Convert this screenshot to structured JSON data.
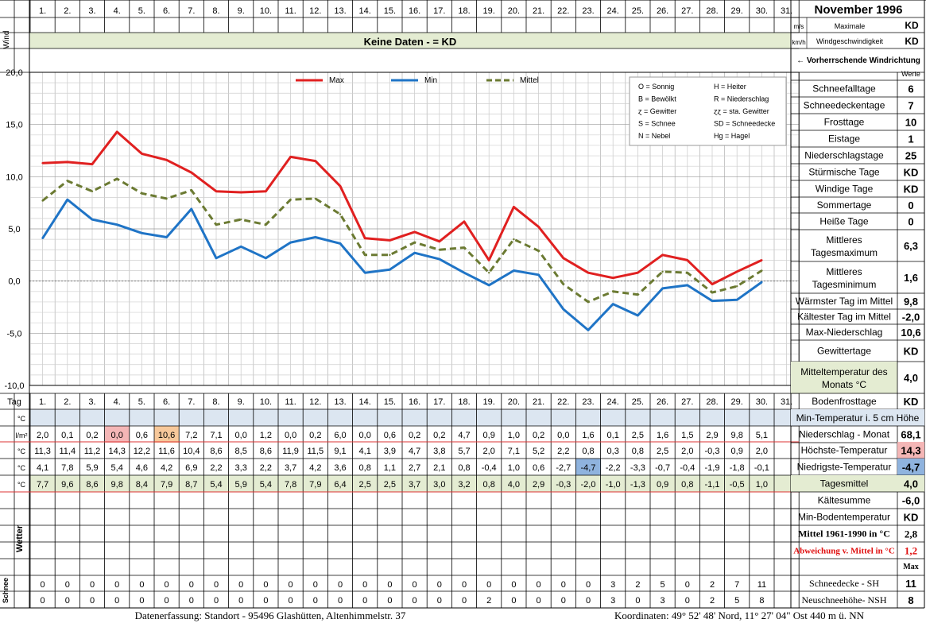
{
  "header": {
    "month_title": "November 1996",
    "wind_label": "Wind",
    "unit_ms": "m/s",
    "unit_kmh": "km/h",
    "max_wind_label_1": "Maximale",
    "max_wind_label_2": "Windgeschwindigkeit",
    "max_wind_ms": "KD",
    "max_wind_kmh": "KD",
    "no_data_banner": "Keine Daten -  = KD",
    "wind_direction_label": "← Vorherrschende Windrichtung",
    "werte_label": "Werte"
  },
  "days": [
    "1.",
    "2.",
    "3.",
    "4.",
    "5.",
    "6.",
    "7.",
    "8.",
    "9.",
    "10.",
    "11.",
    "12.",
    "13.",
    "14.",
    "15.",
    "16.",
    "17.",
    "18.",
    "19.",
    "20.",
    "21.",
    "22.",
    "23.",
    "24.",
    "25.",
    "26.",
    "27.",
    "28.",
    "29.",
    "30.",
    "31."
  ],
  "legend_box": [
    {
      "left": "O = Sonnig",
      "right": "H = Heiter"
    },
    {
      "left": "B = Bewölkt",
      "right": "R = Niederschlag"
    },
    {
      "left": "ɀ = Gewitter",
      "right": "ɀɀ = sta. Gewitter"
    },
    {
      "left": "S = Schnee",
      "right": "SD = Schneedecke"
    },
    {
      "left": "N = Nebel",
      "right": "Hg = Hagel"
    }
  ],
  "chart_data": {
    "type": "line",
    "x": [
      1,
      2,
      3,
      4,
      5,
      6,
      7,
      8,
      9,
      10,
      11,
      12,
      13,
      14,
      15,
      16,
      17,
      18,
      19,
      20,
      21,
      22,
      23,
      24,
      25,
      26,
      27,
      28,
      29,
      30
    ],
    "xlabel": "Tag",
    "ylim": [
      -10,
      20
    ],
    "y_ticks": [
      "20,0",
      "15,0",
      "10,0",
      "5,0",
      "0,0",
      "-5,0",
      "-10,0"
    ],
    "grid": true,
    "legend_position": "top",
    "series": [
      {
        "name": "Max",
        "color": "#e02020",
        "values": [
          11.3,
          11.4,
          11.2,
          14.3,
          12.2,
          11.6,
          10.4,
          8.6,
          8.5,
          8.6,
          11.9,
          11.5,
          9.1,
          4.1,
          3.9,
          4.7,
          3.8,
          5.7,
          2.0,
          7.1,
          5.2,
          2.2,
          0.8,
          0.3,
          0.8,
          2.5,
          2.0,
          -0.3,
          0.9,
          2.0
        ]
      },
      {
        "name": "Min",
        "color": "#1f74c6",
        "values": [
          4.1,
          7.8,
          5.9,
          5.4,
          4.6,
          4.2,
          6.9,
          2.2,
          3.3,
          2.2,
          3.7,
          4.2,
          3.6,
          0.8,
          1.1,
          2.7,
          2.1,
          0.8,
          -0.4,
          1.0,
          0.6,
          -2.7,
          -4.7,
          -2.2,
          -3.3,
          -0.7,
          -0.4,
          -1.9,
          -1.8,
          -0.1
        ]
      },
      {
        "name": "Mittel",
        "color": "#6b7a32",
        "values": [
          7.7,
          9.6,
          8.6,
          9.8,
          8.4,
          7.9,
          8.7,
          5.4,
          5.9,
          5.4,
          7.8,
          7.9,
          6.4,
          2.5,
          2.5,
          3.7,
          3.0,
          3.2,
          0.8,
          4.0,
          2.9,
          -0.3,
          -2.0,
          -1.0,
          -1.3,
          0.9,
          0.8,
          -1.1,
          -0.5,
          1.0
        ]
      }
    ]
  },
  "table": {
    "tag_label": "Tag",
    "row_units": [
      "°C",
      "l/m²",
      "°C",
      "°C",
      "°C"
    ],
    "niederschlag": [
      "2,0",
      "0,1",
      "0,2",
      "0,0",
      "0,6",
      "10,6",
      "7,2",
      "7,1",
      "0,0",
      "1,2",
      "0,0",
      "0,2",
      "6,0",
      "0,0",
      "0,6",
      "0,2",
      "0,2",
      "4,7",
      "0,9",
      "1,0",
      "0,2",
      "0,0",
      "1,6",
      "0,1",
      "2,5",
      "1,6",
      "1,5",
      "2,9",
      "9,8",
      "5,1",
      ""
    ],
    "max": [
      "11,3",
      "11,4",
      "11,2",
      "14,3",
      "12,2",
      "11,6",
      "10,4",
      "8,6",
      "8,5",
      "8,6",
      "11,9",
      "11,5",
      "9,1",
      "4,1",
      "3,9",
      "4,7",
      "3,8",
      "5,7",
      "2,0",
      "7,1",
      "5,2",
      "2,2",
      "0,8",
      "0,3",
      "0,8",
      "2,5",
      "2,0",
      "-0,3",
      "0,9",
      "2,0",
      ""
    ],
    "min": [
      "4,1",
      "7,8",
      "5,9",
      "5,4",
      "4,6",
      "4,2",
      "6,9",
      "2,2",
      "3,3",
      "2,2",
      "3,7",
      "4,2",
      "3,6",
      "0,8",
      "1,1",
      "2,7",
      "2,1",
      "0,8",
      "-0,4",
      "1,0",
      "0,6",
      "-2,7",
      "-4,7",
      "-2,2",
      "-3,3",
      "-0,7",
      "-0,4",
      "-1,9",
      "-1,8",
      "-0,1",
      ""
    ],
    "mittel": [
      "7,7",
      "9,6",
      "8,6",
      "9,8",
      "8,4",
      "7,9",
      "8,7",
      "5,4",
      "5,9",
      "5,4",
      "7,8",
      "7,9",
      "6,4",
      "2,5",
      "2,5",
      "3,7",
      "3,0",
      "3,2",
      "0,8",
      "4,0",
      "2,9",
      "-0,3",
      "-2,0",
      "-1,0",
      "-1,3",
      "0,9",
      "0,8",
      "-1,1",
      "-0,5",
      "1,0",
      ""
    ],
    "wetter_label": "Wetter",
    "schnee_label": "Schnee",
    "snow_sh": [
      "0",
      "0",
      "0",
      "0",
      "0",
      "0",
      "0",
      "0",
      "0",
      "0",
      "0",
      "0",
      "0",
      "0",
      "0",
      "0",
      "0",
      "0",
      "0",
      "0",
      "0",
      "0",
      "0",
      "3",
      "2",
      "5",
      "0",
      "2",
      "7",
      "11",
      ""
    ],
    "snow_nsh": [
      "0",
      "0",
      "0",
      "0",
      "0",
      "0",
      "0",
      "0",
      "0",
      "0",
      "0",
      "0",
      "0",
      "0",
      "0",
      "0",
      "0",
      "0",
      "2",
      "0",
      "0",
      "0",
      "0",
      "3",
      "0",
      "3",
      "0",
      "2",
      "5",
      "8",
      ""
    ]
  },
  "stats": [
    {
      "label": "Schneefalltage",
      "value": "6"
    },
    {
      "label": "Schneedeckentage",
      "value": "7"
    },
    {
      "label": "Frosttage",
      "value": "10"
    },
    {
      "label": "Eistage",
      "value": "1"
    },
    {
      "label": "Niederschlagstage",
      "value": "25"
    },
    {
      "label": "Stürmische Tage",
      "value": "KD"
    },
    {
      "label": "Windige Tage",
      "value": "KD"
    },
    {
      "label": "Sommertage",
      "value": "0"
    },
    {
      "label": "Heiße Tage",
      "value": "0"
    },
    {
      "label": "Mittleres Tagesmaximum",
      "value": "6,3"
    },
    {
      "label": "Mittleres Tagesminimum",
      "value": "1,6"
    },
    {
      "label": "Wärmster Tag im Mittel",
      "value": "9,8"
    },
    {
      "label": "Kältester Tag im Mittel",
      "value": "-2,0"
    },
    {
      "label": "Max-Niederschlag",
      "value": "10,6"
    },
    {
      "label": "Gewittertage",
      "value": "KD"
    },
    {
      "label": "Mitteltemperatur des Monats °C",
      "value": "4,0"
    },
    {
      "label": "Bodenfrosttage",
      "value": "KD"
    }
  ],
  "lower_stats": {
    "min_temp_5cm": "Min-Temperatur i. 5 cm Höhe",
    "rows": [
      {
        "label": "Niederschlag - Monat",
        "value": "68,1"
      },
      {
        "label": "Höchste-Temperatur",
        "value": "14,3"
      },
      {
        "label": "Niedrigste-Temperatur",
        "value": "-4,7"
      },
      {
        "label": "Tagesmittel",
        "value": "4,0"
      },
      {
        "label": "Kältesumme",
        "value": "-6,0"
      },
      {
        "label": "Min-Bodentemperatur",
        "value": "KD"
      },
      {
        "label": "Mittel 1961-1990 in °C",
        "value": "2,8"
      },
      {
        "label": "Abweichung v. Mittel in °C",
        "value": "1,2"
      }
    ],
    "max_label": "Max",
    "snow_rows": [
      {
        "label": "Schneedecke -   SH",
        "value": "11"
      },
      {
        "label": "Neuschneehöhe- NSH",
        "value": "8"
      }
    ]
  },
  "footer": {
    "left": "Datenerfassung:  Standort -  95496  Glashütten, Altenhimmelstr. 37",
    "right": "Koordinaten:  49° 52' 48' Nord,  11° 27' 04\" Ost   440 m ü. NN"
  },
  "colors": {
    "green_band": "#e4ecd2",
    "blue_band": "#dce6f1",
    "red_highlight": "#f4b6b6",
    "orange_highlight": "#f7c89a",
    "blue_highlight": "#8fb3de"
  }
}
